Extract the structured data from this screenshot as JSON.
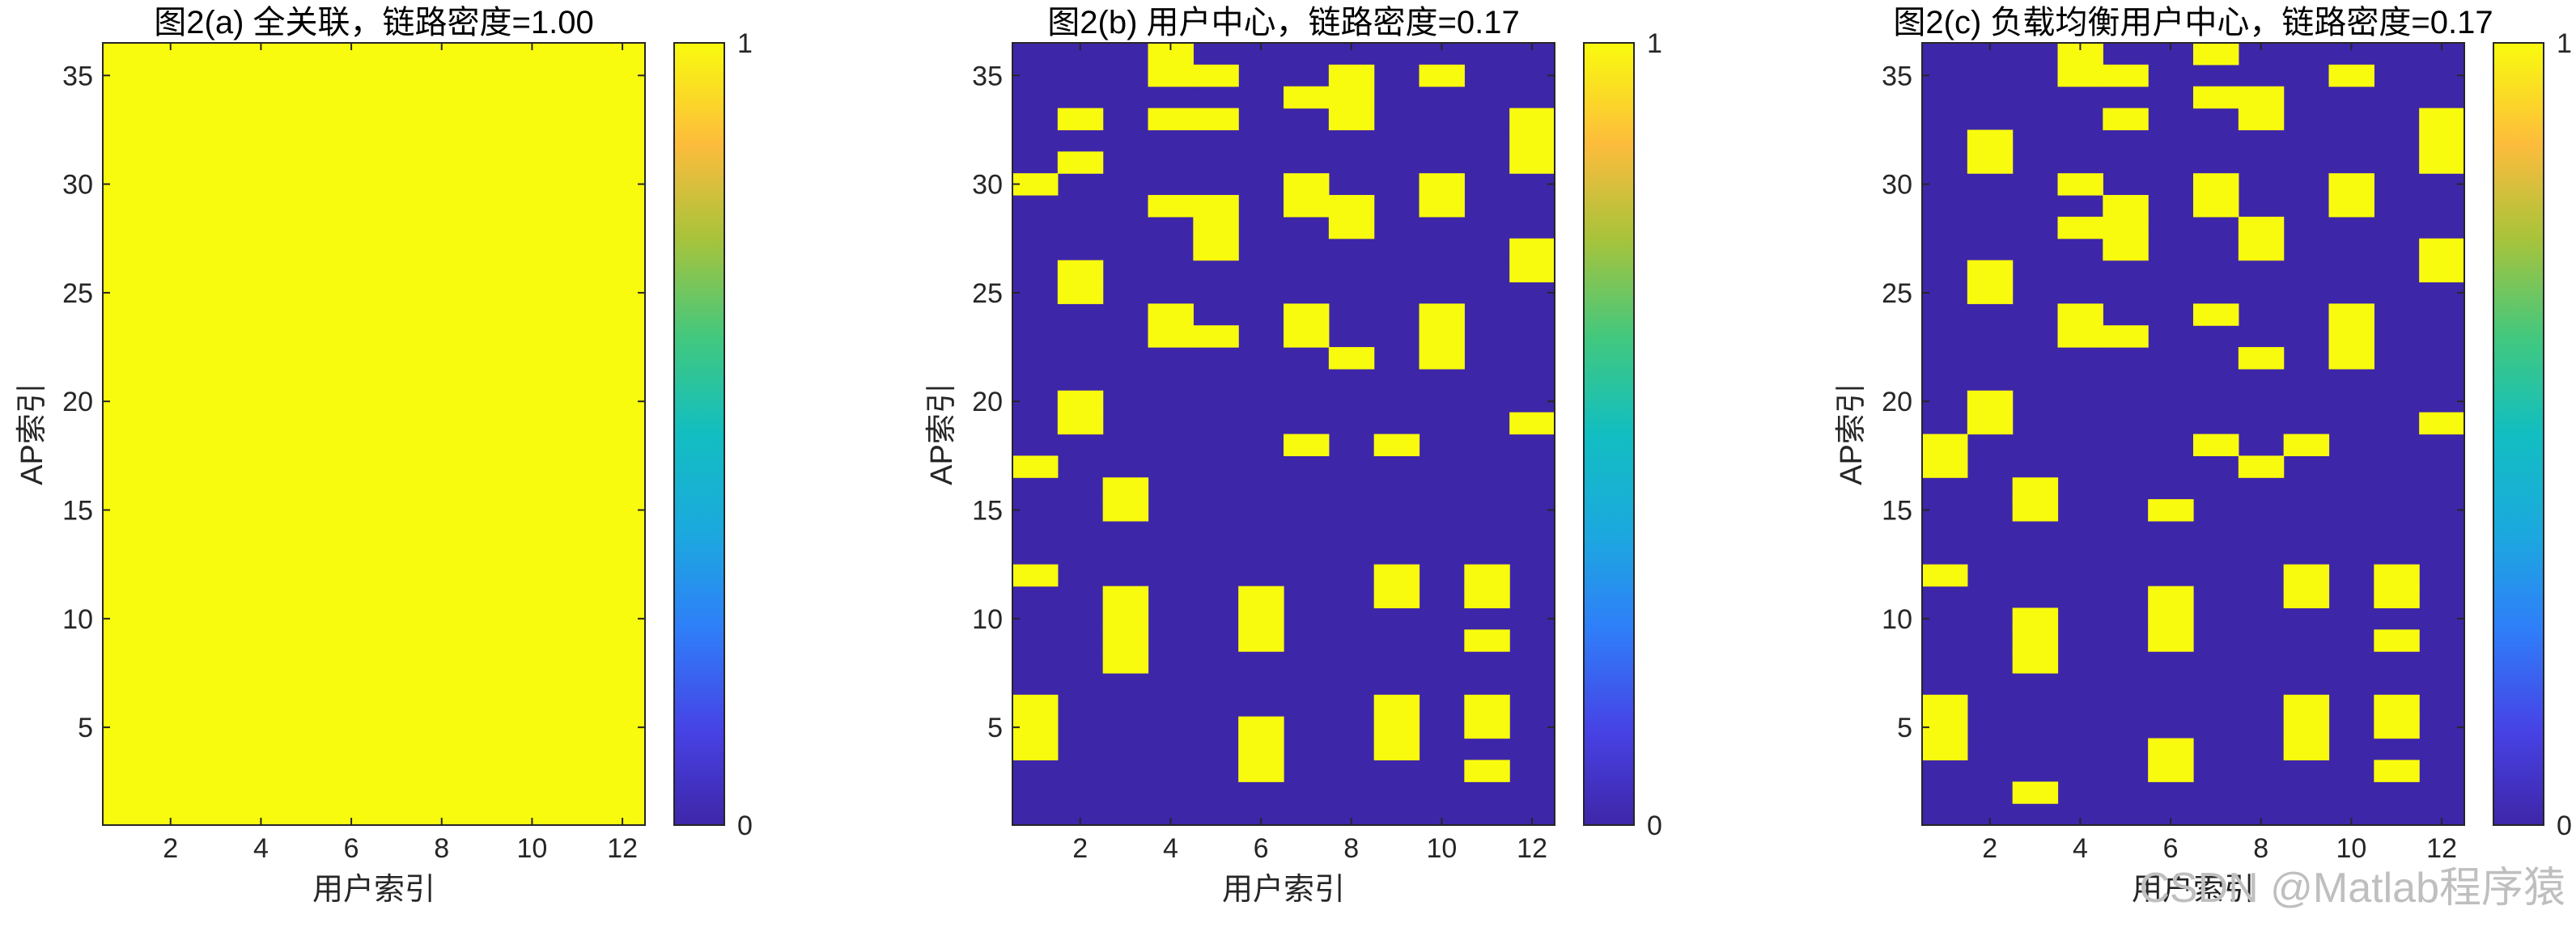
{
  "colors": {
    "low": "#3e26a8",
    "high": "#f9fb0e",
    "axis": "#262626"
  },
  "watermark": "CSDN @Matlab程序猿",
  "chart_data": [
    {
      "type": "heatmap",
      "title": "图2(a) 全关联，链路密度=1.00",
      "xlabel": "用户索引",
      "ylabel": "AP索引",
      "xlim": [
        0.5,
        12.5
      ],
      "ylim": [
        0.5,
        36.5
      ],
      "x_ticks": [
        2,
        4,
        6,
        8,
        10,
        12
      ],
      "y_ticks": [
        5,
        10,
        15,
        20,
        25,
        30,
        35
      ],
      "colorbar": {
        "range": [
          0,
          1
        ],
        "ticks": [
          0,
          1
        ],
        "colormap": "parula"
      },
      "rows": 36,
      "cols": 12,
      "fill_all": true,
      "cells": []
    },
    {
      "type": "heatmap",
      "title": "图2(b) 用户中心，链路密度=0.17",
      "xlabel": "用户索引",
      "ylabel": "AP索引",
      "xlim": [
        0.5,
        12.5
      ],
      "ylim": [
        0.5,
        36.5
      ],
      "x_ticks": [
        2,
        4,
        6,
        8,
        10,
        12
      ],
      "y_ticks": [
        5,
        10,
        15,
        20,
        25,
        30,
        35
      ],
      "colorbar": {
        "range": [
          0,
          1
        ],
        "ticks": [
          0,
          1
        ],
        "colormap": "parula"
      },
      "rows": 36,
      "cols": 12,
      "fill_all": false,
      "cells": [
        [
          1,
          30
        ],
        [
          1,
          17
        ],
        [
          1,
          12
        ],
        [
          1,
          6
        ],
        [
          1,
          5
        ],
        [
          1,
          4
        ],
        [
          2,
          33
        ],
        [
          2,
          31
        ],
        [
          2,
          26
        ],
        [
          2,
          25
        ],
        [
          2,
          20
        ],
        [
          2,
          19
        ],
        [
          3,
          16
        ],
        [
          3,
          15
        ],
        [
          3,
          11
        ],
        [
          3,
          10
        ],
        [
          3,
          9
        ],
        [
          3,
          8
        ],
        [
          4,
          36
        ],
        [
          4,
          35
        ],
        [
          4,
          33
        ],
        [
          4,
          29
        ],
        [
          4,
          24
        ],
        [
          4,
          23
        ],
        [
          5,
          35
        ],
        [
          5,
          33
        ],
        [
          5,
          29
        ],
        [
          5,
          28
        ],
        [
          5,
          27
        ],
        [
          5,
          23
        ],
        [
          6,
          11
        ],
        [
          6,
          10
        ],
        [
          6,
          9
        ],
        [
          6,
          5
        ],
        [
          6,
          4
        ],
        [
          6,
          3
        ],
        [
          7,
          34
        ],
        [
          7,
          30
        ],
        [
          7,
          29
        ],
        [
          7,
          24
        ],
        [
          7,
          23
        ],
        [
          7,
          18
        ],
        [
          8,
          35
        ],
        [
          8,
          34
        ],
        [
          8,
          33
        ],
        [
          8,
          29
        ],
        [
          8,
          28
        ],
        [
          8,
          22
        ],
        [
          9,
          12
        ],
        [
          9,
          11
        ],
        [
          9,
          6
        ],
        [
          9,
          5
        ],
        [
          9,
          4
        ],
        [
          9,
          18
        ],
        [
          10,
          35
        ],
        [
          10,
          30
        ],
        [
          10,
          29
        ],
        [
          10,
          24
        ],
        [
          10,
          23
        ],
        [
          10,
          22
        ],
        [
          11,
          12
        ],
        [
          11,
          11
        ],
        [
          11,
          9
        ],
        [
          11,
          6
        ],
        [
          11,
          5
        ],
        [
          11,
          3
        ],
        [
          12,
          33
        ],
        [
          12,
          32
        ],
        [
          12,
          31
        ],
        [
          12,
          27
        ],
        [
          12,
          26
        ],
        [
          12,
          19
        ]
      ]
    },
    {
      "type": "heatmap",
      "title": "图2(c) 负载均衡用户中心，链路密度=0.17",
      "xlabel": "用户索引",
      "ylabel": "AP索引",
      "xlim": [
        0.5,
        12.5
      ],
      "ylim": [
        0.5,
        36.5
      ],
      "x_ticks": [
        2,
        4,
        6,
        8,
        10,
        12
      ],
      "y_ticks": [
        5,
        10,
        15,
        20,
        25,
        30,
        35
      ],
      "colorbar": {
        "range": [
          0,
          1
        ],
        "ticks": [
          0,
          1
        ],
        "colormap": "parula"
      },
      "rows": 36,
      "cols": 12,
      "fill_all": false,
      "cells": [
        [
          1,
          18
        ],
        [
          1,
          17
        ],
        [
          1,
          12
        ],
        [
          1,
          6
        ],
        [
          1,
          5
        ],
        [
          1,
          4
        ],
        [
          2,
          32
        ],
        [
          2,
          31
        ],
        [
          2,
          26
        ],
        [
          2,
          25
        ],
        [
          2,
          20
        ],
        [
          2,
          19
        ],
        [
          3,
          16
        ],
        [
          3,
          15
        ],
        [
          3,
          10
        ],
        [
          3,
          9
        ],
        [
          3,
          8
        ],
        [
          3,
          2
        ],
        [
          4,
          36
        ],
        [
          4,
          35
        ],
        [
          4,
          30
        ],
        [
          4,
          28
        ],
        [
          4,
          24
        ],
        [
          4,
          23
        ],
        [
          5,
          35
        ],
        [
          5,
          33
        ],
        [
          5,
          29
        ],
        [
          5,
          28
        ],
        [
          5,
          27
        ],
        [
          5,
          23
        ],
        [
          6,
          15
        ],
        [
          6,
          11
        ],
        [
          6,
          10
        ],
        [
          6,
          9
        ],
        [
          6,
          4
        ],
        [
          6,
          3
        ],
        [
          7,
          36
        ],
        [
          7,
          34
        ],
        [
          7,
          30
        ],
        [
          7,
          29
        ],
        [
          7,
          24
        ],
        [
          7,
          18
        ],
        [
          8,
          34
        ],
        [
          8,
          33
        ],
        [
          8,
          28
        ],
        [
          8,
          27
        ],
        [
          8,
          22
        ],
        [
          8,
          17
        ],
        [
          9,
          12
        ],
        [
          9,
          11
        ],
        [
          9,
          6
        ],
        [
          9,
          5
        ],
        [
          9,
          4
        ],
        [
          9,
          18
        ],
        [
          10,
          35
        ],
        [
          10,
          30
        ],
        [
          10,
          29
        ],
        [
          10,
          24
        ],
        [
          10,
          23
        ],
        [
          10,
          22
        ],
        [
          11,
          12
        ],
        [
          11,
          11
        ],
        [
          11,
          9
        ],
        [
          11,
          6
        ],
        [
          11,
          5
        ],
        [
          11,
          3
        ],
        [
          12,
          33
        ],
        [
          12,
          32
        ],
        [
          12,
          31
        ],
        [
          12,
          27
        ],
        [
          12,
          26
        ],
        [
          12,
          19
        ]
      ]
    }
  ]
}
